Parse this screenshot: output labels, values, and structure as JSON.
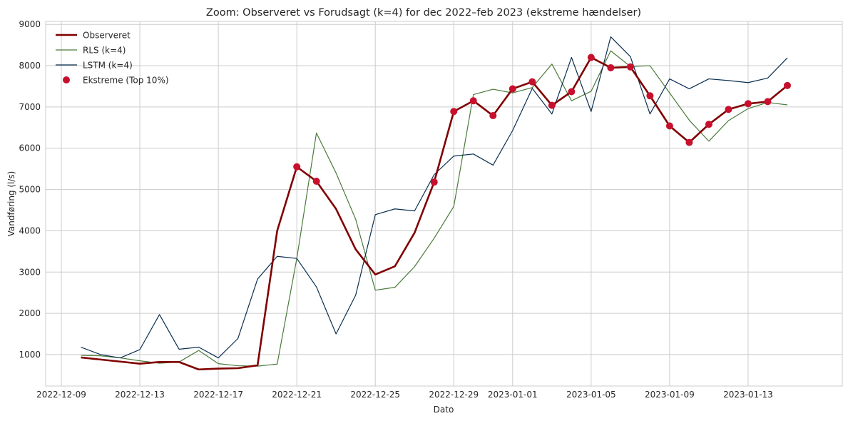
{
  "chart_data": {
    "type": "line",
    "title": "Zoom: Observeret vs Forudsagt (k=4) for dec 2022–feb 2023 (ekstreme hændelser)",
    "xlabel": "Dato",
    "ylabel": "Vandføring (l/s)",
    "x_start": "2022-12-10",
    "x": [
      "2022-12-10",
      "2022-12-11",
      "2022-12-12",
      "2022-12-13",
      "2022-12-14",
      "2022-12-15",
      "2022-12-16",
      "2022-12-17",
      "2022-12-18",
      "2022-12-19",
      "2022-12-20",
      "2022-12-21",
      "2022-12-22",
      "2022-12-23",
      "2022-12-24",
      "2022-12-25",
      "2022-12-26",
      "2022-12-27",
      "2022-12-28",
      "2022-12-29",
      "2022-12-30",
      "2022-12-31",
      "2023-01-01",
      "2023-01-02",
      "2023-01-03",
      "2023-01-04",
      "2023-01-05",
      "2023-01-06",
      "2023-01-07",
      "2023-01-08",
      "2023-01-09",
      "2023-01-10",
      "2023-01-11",
      "2023-01-12",
      "2023-01-13",
      "2023-01-14",
      "2023-01-15"
    ],
    "xlim": [
      "2022-12-08T04:48",
      "2023-01-17T19:12"
    ],
    "xticks": [
      "2022-12-09",
      "2022-12-13",
      "2022-12-17",
      "2022-12-21",
      "2022-12-25",
      "2022-12-29",
      "2023-01-01",
      "2023-01-05",
      "2023-01-09",
      "2023-01-13"
    ],
    "ylim": [
      238,
      9073
    ],
    "yticks": [
      1000,
      2000,
      3000,
      4000,
      5000,
      6000,
      7000,
      8000,
      9000
    ],
    "grid": true,
    "legend_position": "top-left",
    "series": [
      {
        "name": "Observeret",
        "color": "#800000",
        "values": [
          930,
          880,
          830,
          780,
          820,
          820,
          640,
          660,
          670,
          740,
          4000,
          5550,
          5200,
          4530,
          3550,
          2940,
          3140,
          3950,
          5180,
          6890,
          7150,
          6790,
          7440,
          7610,
          7040,
          7370,
          8200,
          7950,
          7970,
          7270,
          6540,
          6140,
          6580,
          6940,
          7080,
          7130,
          7520
        ]
      },
      {
        "name": "RLS (k=4)",
        "color": "#4a7a3a",
        "values": [
          980,
          970,
          920,
          850,
          790,
          820,
          1100,
          780,
          730,
          720,
          770,
          3330,
          6370,
          5400,
          4280,
          2560,
          2630,
          3130,
          3820,
          4590,
          7300,
          7430,
          7340,
          7470,
          8040,
          7150,
          7380,
          8360,
          7980,
          8000,
          7340,
          6680,
          6170,
          6670,
          6960,
          7110,
          7050
        ]
      },
      {
        "name": "LSTM (k=4)",
        "color": "#0b2f4f",
        "values": [
          1180,
          1000,
          920,
          1120,
          1970,
          1130,
          1180,
          920,
          1390,
          2830,
          3380,
          3330,
          2640,
          1500,
          2440,
          4390,
          4530,
          4480,
          5360,
          5810,
          5860,
          5590,
          6430,
          7450,
          6830,
          8200,
          6890,
          8700,
          8220,
          6830,
          7680,
          7440,
          7680,
          7640,
          7590,
          7700,
          8190
        ]
      },
      {
        "name": "Ekstreme (Top 10%)",
        "color": "#c8102e",
        "x": [
          "2022-12-21",
          "2022-12-22",
          "2022-12-28",
          "2022-12-29",
          "2022-12-30",
          "2022-12-31",
          "2023-01-01",
          "2023-01-02",
          "2023-01-03",
          "2023-01-04",
          "2023-01-05",
          "2023-01-06",
          "2023-01-07",
          "2023-01-08",
          "2023-01-09",
          "2023-01-10",
          "2023-01-11",
          "2023-01-12",
          "2023-01-13",
          "2023-01-14",
          "2023-01-15"
        ],
        "values": [
          5550,
          5200,
          5180,
          6890,
          7150,
          6790,
          7440,
          7610,
          7040,
          7370,
          8200,
          7950,
          7970,
          7270,
          6540,
          6140,
          6580,
          6940,
          7080,
          7130,
          7520
        ]
      }
    ]
  }
}
